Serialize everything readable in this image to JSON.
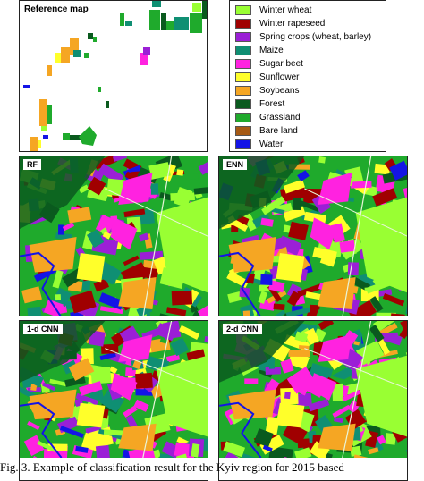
{
  "reference_map": {
    "title": "Reference map"
  },
  "legend": {
    "items": [
      {
        "label": "Winter wheat",
        "color": "#99ff33"
      },
      {
        "label": "Winter rapeseed",
        "color": "#a00000"
      },
      {
        "label": "Spring crops (wheat, barley)",
        "color": "#9b1fd6"
      },
      {
        "label": "Maize",
        "color": "#0f8f73"
      },
      {
        "label": "Sugar beet",
        "color": "#ff22e0"
      },
      {
        "label": "Sunflower",
        "color": "#ffff2a"
      },
      {
        "label": "Soybeans",
        "color": "#f5a623"
      },
      {
        "label": "Forest",
        "color": "#0a5a1e"
      },
      {
        "label": "Grassland",
        "color": "#1faa2c"
      },
      {
        "label": "Bare land",
        "color": "#a65a14"
      },
      {
        "label": "Water",
        "color": "#1414e6"
      }
    ]
  },
  "maps": [
    {
      "label": "RF"
    },
    {
      "label": "ENN"
    },
    {
      "label": "1-d CNN"
    },
    {
      "label": "2-d CNN"
    }
  ],
  "caption": "Fig. 3.   Example of classification result for the Kyiv region for 2015 based"
}
